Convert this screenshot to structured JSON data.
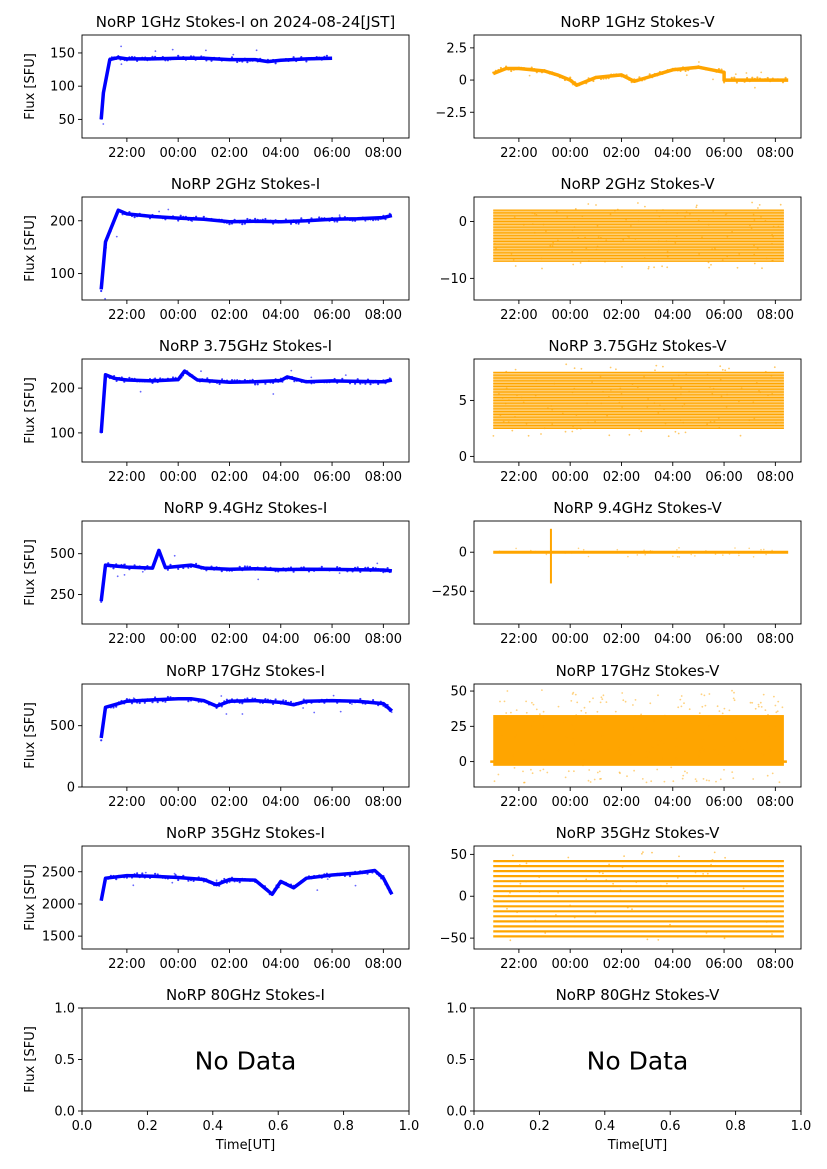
{
  "figure": {
    "x_tick_labels": [
      "22:00",
      "00:00",
      "02:00",
      "04:00",
      "06:00",
      "08:00"
    ],
    "nodata_tick_labels": [
      "0.0",
      "0.2",
      "0.4",
      "0.6",
      "0.8",
      "1.0"
    ],
    "ylabel": "Flux [SFU]",
    "xlabel": "Time[UT]",
    "colors": {
      "stokes_i": "#0000ff",
      "stokes_v": "#ffa500"
    }
  },
  "chart_data": [
    {
      "type": "scatter",
      "title": "NoRP 1GHz Stokes-I on 2024-08-24[JST]",
      "ylabel": "Flux [SFU]",
      "xlim": [
        "20:15",
        "09:00"
      ],
      "ylim": [
        22,
        177
      ],
      "yticks": [
        50,
        100,
        150
      ],
      "x": [
        "21:00",
        "21:05",
        "21:20",
        "21:40",
        "22:00",
        "23:00",
        "00:00",
        "01:00",
        "02:00",
        "03:00",
        "03:30",
        "04:00",
        "05:00",
        "06:00"
      ],
      "values": [
        50,
        90,
        140,
        143,
        141,
        141,
        142,
        142,
        140,
        140,
        137,
        139,
        141,
        142
      ]
    },
    {
      "type": "scatter",
      "title": "NoRP 1GHz Stokes-V",
      "xlim": [
        "20:15",
        "09:00"
      ],
      "ylim": [
        -4.5,
        3.5
      ],
      "yticks": [
        -2.5,
        0.0,
        2.5
      ],
      "x": [
        "21:00",
        "21:30",
        "22:00",
        "23:00",
        "23:30",
        "00:00",
        "00:15",
        "01:00",
        "02:00",
        "02:30",
        "03:00",
        "04:00",
        "05:00",
        "06:00",
        "06:00",
        "08:30"
      ],
      "values": [
        0.5,
        0.9,
        0.9,
        0.7,
        0.4,
        0.0,
        -0.4,
        0.2,
        0.4,
        -0.1,
        0.2,
        0.8,
        1.0,
        0.6,
        0.0,
        0.0
      ]
    },
    {
      "type": "scatter",
      "title": "NoRP 2GHz Stokes-I",
      "ylabel": "Flux [SFU]",
      "xlim": [
        "20:15",
        "09:00"
      ],
      "ylim": [
        50,
        245
      ],
      "yticks": [
        100,
        200
      ],
      "x": [
        "21:00",
        "21:10",
        "21:40",
        "22:00",
        "23:00",
        "00:00",
        "01:00",
        "02:00",
        "03:00",
        "04:00",
        "05:00",
        "06:00",
        "07:00",
        "08:00",
        "08:20"
      ],
      "values": [
        70,
        160,
        220,
        213,
        208,
        205,
        203,
        198,
        199,
        198,
        200,
        203,
        204,
        206,
        210
      ]
    },
    {
      "type": "scatter",
      "title": "NoRP 2GHz Stokes-V",
      "xlim": [
        "20:15",
        "09:00"
      ],
      "ylim": [
        -13.8,
        4.3
      ],
      "yticks": [
        -10,
        0
      ],
      "x_range": [
        "21:00",
        "08:20"
      ],
      "band_min": -7,
      "band_max": 2,
      "level_step": 0.5
    },
    {
      "type": "scatter",
      "title": "NoRP 3.75GHz Stokes-I",
      "ylabel": "Flux [SFU]",
      "xlim": [
        "20:15",
        "09:00"
      ],
      "ylim": [
        35,
        265
      ],
      "yticks": [
        100,
        200
      ],
      "x": [
        "21:00",
        "21:10",
        "21:30",
        "22:00",
        "23:00",
        "00:00",
        "00:15",
        "00:45",
        "02:00",
        "03:00",
        "04:00",
        "04:15",
        "05:00",
        "06:00",
        "07:00",
        "08:00",
        "08:20"
      ],
      "values": [
        100,
        230,
        222,
        218,
        216,
        219,
        238,
        218,
        213,
        214,
        217,
        225,
        214,
        216,
        215,
        214,
        218
      ]
    },
    {
      "type": "scatter",
      "title": "NoRP 3.75GHz Stokes-V",
      "xlim": [
        "20:15",
        "09:00"
      ],
      "ylim": [
        -0.5,
        8.7
      ],
      "yticks": [
        0,
        5
      ],
      "x_range": [
        "21:00",
        "08:20"
      ],
      "band_min": 2.5,
      "band_max": 7.5,
      "level_step": 0.25
    },
    {
      "type": "scatter",
      "title": "NoRP 9.4GHz Stokes-I",
      "ylabel": "Flux [SFU]",
      "xlim": [
        "20:15",
        "09:00"
      ],
      "ylim": [
        70,
        700
      ],
      "yticks": [
        250,
        500
      ],
      "x": [
        "21:00",
        "21:10",
        "22:00",
        "23:00",
        "23:15",
        "23:30",
        "00:30",
        "01:00",
        "02:00",
        "03:00",
        "04:00",
        "05:00",
        "06:00",
        "07:00",
        "08:00",
        "08:20"
      ],
      "values": [
        210,
        430,
        418,
        412,
        520,
        415,
        430,
        412,
        405,
        408,
        403,
        405,
        404,
        402,
        400,
        395
      ]
    },
    {
      "type": "scatter",
      "title": "NoRP 9.4GHz Stokes-V",
      "xlim": [
        "20:15",
        "09:00"
      ],
      "ylim": [
        -460,
        200
      ],
      "yticks": [
        -250,
        0
      ],
      "x_range": [
        "21:00",
        "08:30"
      ],
      "baseline": 0,
      "spike_time": "23:15",
      "spike_min": -200,
      "spike_max": 150
    },
    {
      "type": "scatter",
      "title": "NoRP 17GHz Stokes-I",
      "ylabel": "Flux [SFU]",
      "xlim": [
        "20:15",
        "09:00"
      ],
      "ylim": [
        0,
        840
      ],
      "yticks": [
        0,
        500
      ],
      "x": [
        "21:00",
        "21:10",
        "22:00",
        "23:00",
        "00:00",
        "00:30",
        "01:00",
        "01:30",
        "02:00",
        "03:00",
        "04:00",
        "04:30",
        "05:00",
        "06:00",
        "07:00",
        "08:00",
        "08:20"
      ],
      "values": [
        400,
        650,
        700,
        710,
        720,
        720,
        705,
        660,
        700,
        705,
        690,
        670,
        700,
        705,
        700,
        680,
        620
      ]
    },
    {
      "type": "scatter",
      "title": "NoRP 17GHz Stokes-V",
      "xlim": [
        "20:15",
        "09:00"
      ],
      "ylim": [
        -18,
        55
      ],
      "yticks": [
        0,
        25,
        50
      ],
      "x_range": [
        "21:00",
        "08:20"
      ],
      "band_min": -3,
      "band_max": 33,
      "baseline": 0
    },
    {
      "type": "scatter",
      "title": "NoRP 35GHz Stokes-I",
      "ylabel": "Flux [SFU]",
      "xlim": [
        "20:15",
        "09:00"
      ],
      "ylim": [
        1300,
        2900
      ],
      "yticks": [
        1500,
        2000,
        2500
      ],
      "x": [
        "21:00",
        "21:10",
        "22:00",
        "23:00",
        "00:00",
        "01:00",
        "01:30",
        "02:00",
        "03:00",
        "03:40",
        "04:00",
        "04:30",
        "05:00",
        "06:00",
        "07:00",
        "07:40",
        "08:00",
        "08:20"
      ],
      "values": [
        2050,
        2400,
        2440,
        2430,
        2410,
        2380,
        2300,
        2380,
        2370,
        2150,
        2350,
        2250,
        2400,
        2450,
        2480,
        2520,
        2400,
        2150
      ]
    },
    {
      "type": "scatter",
      "title": "NoRP 35GHz Stokes-V",
      "xlim": [
        "20:15",
        "09:00"
      ],
      "ylim": [
        -63,
        60
      ],
      "yticks": [
        -50,
        0,
        50
      ],
      "x_range": [
        "21:00",
        "08:20"
      ],
      "levels": [
        -48,
        -42,
        -36,
        -30,
        -24,
        -18,
        -12,
        -6,
        0,
        6,
        12,
        18,
        24,
        30,
        36,
        42
      ]
    },
    {
      "type": "scatter",
      "title": "NoRP 80GHz Stokes-I",
      "ylabel": "Flux [SFU]",
      "xlabel": "Time[UT]",
      "xlim": [
        0,
        1
      ],
      "ylim": [
        0,
        1
      ],
      "yticks": [
        "0.0",
        "0.5",
        "1.0"
      ],
      "note": "No Data"
    },
    {
      "type": "scatter",
      "title": "NoRP 80GHz Stokes-V",
      "xlabel": "Time[UT]",
      "xlim": [
        0,
        1
      ],
      "ylim": [
        0,
        1
      ],
      "yticks": [
        "0.0",
        "0.5",
        "1.0"
      ],
      "note": "No Data"
    }
  ]
}
